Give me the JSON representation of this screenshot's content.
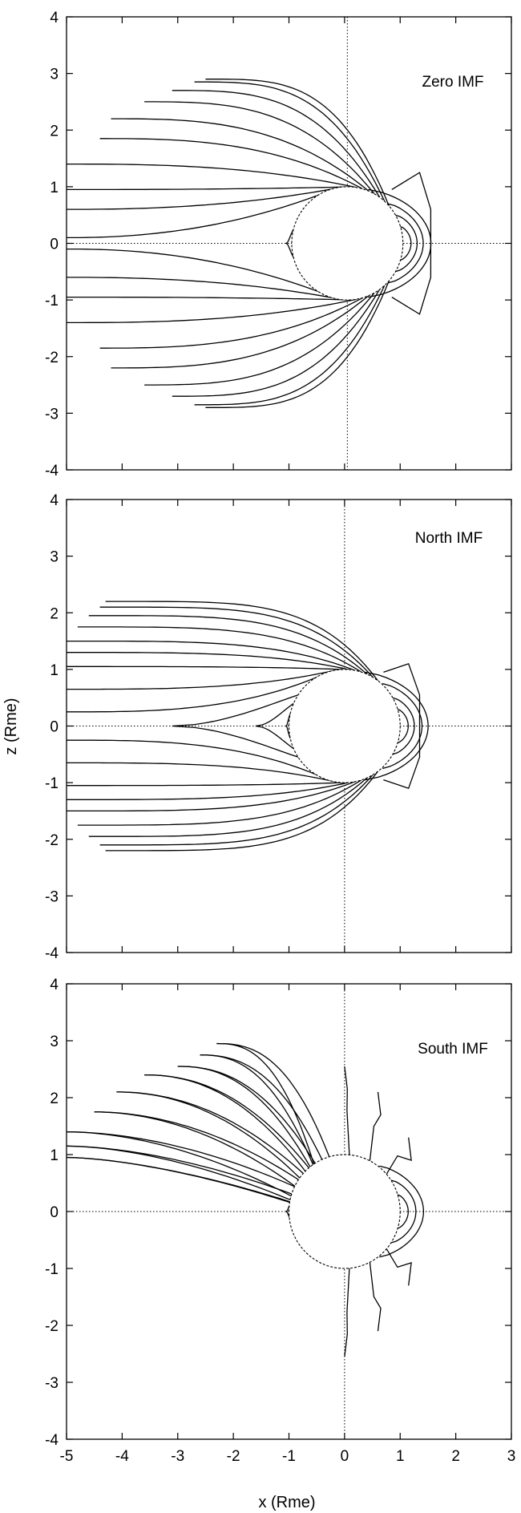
{
  "chart_data": [
    {
      "type": "line",
      "panel": "top",
      "title": "Zero IMF",
      "xlabel": "",
      "ylabel": "",
      "xlim": [
        -5,
        3
      ],
      "ylim": [
        -4,
        4
      ],
      "xticks": [
        -5,
        -4,
        -3,
        -2,
        -1,
        0,
        1,
        2,
        3
      ],
      "yticks": [
        -4,
        -3,
        -2,
        -1,
        0,
        1,
        2,
        3,
        4
      ],
      "grid": false,
      "planet": {
        "center": [
          0.05,
          0.0
        ],
        "radius": 1.0
      },
      "reference_lines": [
        {
          "x": 0.05
        },
        {
          "y": 0.0
        }
      ],
      "field_lines": {
        "tail_start_z_north": [
          0.1,
          0.6,
          0.95,
          1.4,
          1.85,
          2.2,
          2.5,
          2.7,
          2.85,
          2.9
        ],
        "tail_start_x_north": [
          -5.0,
          -5.0,
          -5.0,
          -5.0,
          -4.4,
          -4.2,
          -3.6,
          -3.1,
          -2.7,
          -2.5
        ],
        "dayside_loop_heights": [
          0.3,
          0.5,
          0.7,
          0.95
        ]
      }
    },
    {
      "type": "line",
      "panel": "middle",
      "title": "North IMF",
      "xlabel": "",
      "ylabel": "z (Rme)",
      "xlim": [
        -5,
        3
      ],
      "ylim": [
        -4,
        4
      ],
      "xticks": [
        -5,
        -4,
        -3,
        -2,
        -1,
        0,
        1,
        2,
        3
      ],
      "yticks": [
        -4,
        -3,
        -2,
        -1,
        0,
        1,
        2,
        3,
        4
      ],
      "grid": false,
      "planet": {
        "center": [
          0.0,
          0.0
        ],
        "radius": 1.0
      },
      "reference_lines": [
        {
          "x": 0.0
        },
        {
          "y": 0.0
        }
      ],
      "field_lines": {
        "tail_start_z_north": [
          0.25,
          0.65,
          1.05,
          1.3,
          1.5,
          1.75,
          1.95,
          2.1,
          2.2
        ],
        "tail_start_x_north": [
          -5.0,
          -5.0,
          -5.0,
          -5.0,
          -5.0,
          -4.8,
          -4.6,
          -4.4,
          -4.3
        ],
        "closed_loop_tips_x": [
          -3.1,
          -1.6
        ],
        "dayside_loop_heights": [
          0.3,
          0.5,
          0.75,
          0.95
        ]
      }
    },
    {
      "type": "line",
      "panel": "bottom",
      "title": "South IMF",
      "xlabel": "x (Rme)",
      "ylabel": "",
      "xlim": [
        -5,
        3
      ],
      "ylim": [
        -4,
        4
      ],
      "xticks": [
        -5,
        -4,
        -3,
        -2,
        -1,
        0,
        1,
        2,
        3
      ],
      "yticks": [
        -4,
        -3,
        -2,
        -1,
        0,
        1,
        2,
        3,
        4
      ],
      "grid": false,
      "planet": {
        "center": [
          0.0,
          0.0
        ],
        "radius": 1.0
      },
      "reference_lines": [
        {
          "x": 0.0
        },
        {
          "y": 0.0
        }
      ],
      "field_lines": {
        "tail_start_z_north": [
          0.95,
          1.15,
          1.4,
          1.75,
          2.1,
          2.4,
          2.55,
          2.75,
          2.95
        ],
        "tail_start_x_north": [
          -5.0,
          -5.0,
          -5.0,
          -4.5,
          -4.1,
          -3.6,
          -3.0,
          -2.6,
          -2.3
        ],
        "open_north_tops": [
          [
            0.0,
            2.55
          ],
          [
            0.6,
            2.1
          ],
          [
            1.15,
            1.3
          ]
        ],
        "dayside_loop_heights": [
          0.3,
          0.55,
          0.8
        ]
      }
    }
  ]
}
